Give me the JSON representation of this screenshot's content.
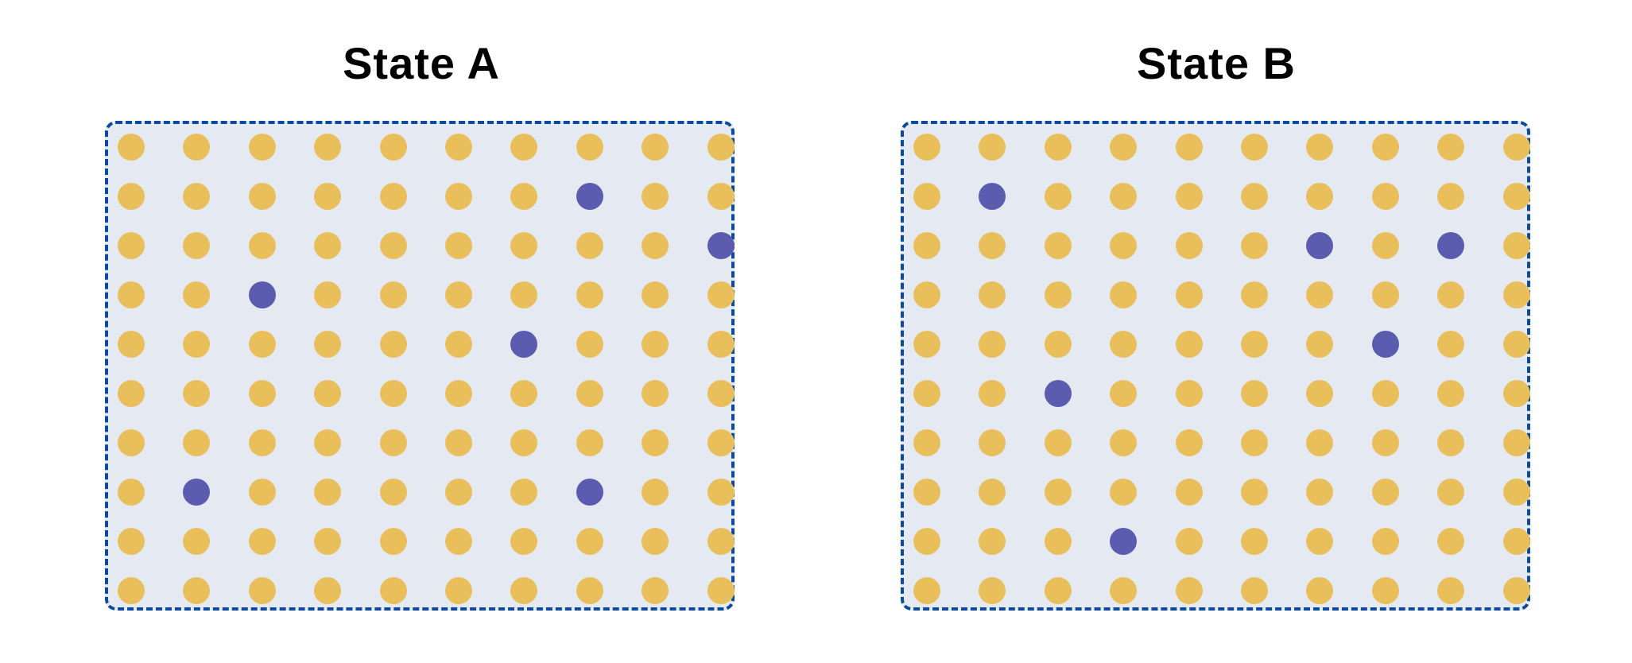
{
  "colors": {
    "background": "#ffffff",
    "panel_fill": "#e5eaf2",
    "panel_border": "#0b4a9e",
    "dot_default": "#e9bf5b",
    "dot_highlight": "#5b5cb0"
  },
  "grid": {
    "rows": 10,
    "cols": 10
  },
  "panels": [
    {
      "title": "State A",
      "highlighted": [
        [
          1,
          7
        ],
        [
          2,
          9
        ],
        [
          3,
          2
        ],
        [
          4,
          6
        ],
        [
          7,
          1
        ],
        [
          7,
          7
        ]
      ]
    },
    {
      "title": "State B",
      "highlighted": [
        [
          1,
          1
        ],
        [
          2,
          6
        ],
        [
          2,
          8
        ],
        [
          4,
          7
        ],
        [
          5,
          2
        ],
        [
          8,
          3
        ]
      ]
    }
  ]
}
